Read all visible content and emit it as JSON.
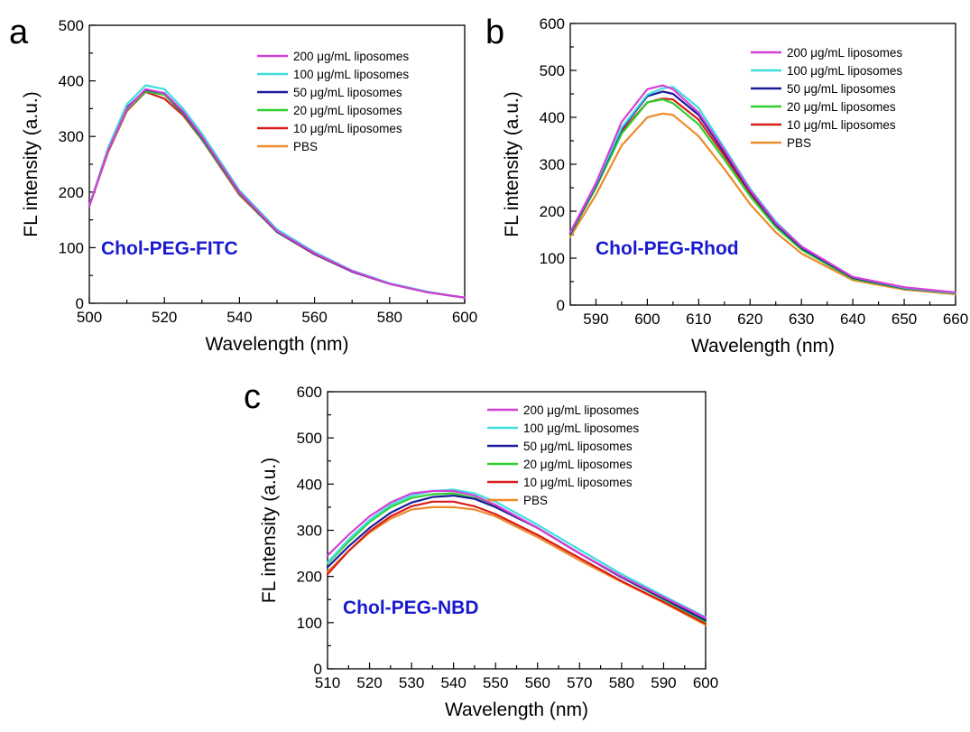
{
  "colors": {
    "200": "#d63fd6",
    "100": "#3fdede",
    "50": "#1c1c9c",
    "20": "#2fcf2f",
    "10": "#d81c1c",
    "PBS": "#ee8a2a",
    "dye_label": "#1a1ad0"
  },
  "chart_data": [
    {
      "panel": "a",
      "type": "line",
      "xlabel": "Wavelength (nm)",
      "ylabel": "FL intensity (a.u.)",
      "xlim": [
        500,
        600
      ],
      "ylim": [
        0,
        500
      ],
      "xticks": [
        "500",
        "520",
        "540",
        "560",
        "580",
        "600"
      ],
      "yticks": [
        "0",
        "100",
        "200",
        "300",
        "400",
        "500"
      ],
      "annotation": "Chol-PEG-FITC",
      "legend": [
        "200 μg/mL liposomes",
        "100 μg/mL liposomes",
        "50 μg/mL liposomes",
        "20 μg/mL liposomes",
        "10 μg/mL liposomes",
        "PBS"
      ],
      "legend_position": "top-right",
      "x": [
        500,
        505,
        510,
        515,
        520,
        525,
        530,
        540,
        550,
        560,
        570,
        580,
        590,
        600
      ],
      "series": [
        {
          "name": "200 μg/mL liposomes",
          "values": [
            175,
            275,
            350,
            385,
            378,
            345,
            300,
            200,
            130,
            90,
            58,
            35,
            20,
            10
          ]
        },
        {
          "name": "100 μg/mL liposomes",
          "values": [
            175,
            280,
            358,
            392,
            385,
            350,
            305,
            203,
            133,
            92,
            59,
            36,
            21,
            10
          ]
        },
        {
          "name": "50 μg/mL liposomes",
          "values": [
            175,
            276,
            352,
            384,
            378,
            343,
            298,
            199,
            129,
            89,
            57,
            35,
            20,
            10
          ]
        },
        {
          "name": "20 μg/mL liposomes",
          "values": [
            175,
            274,
            348,
            381,
            375,
            341,
            295,
            197,
            128,
            89,
            57,
            35,
            20,
            10
          ]
        },
        {
          "name": "10 μg/mL liposomes",
          "values": [
            175,
            272,
            346,
            380,
            368,
            338,
            294,
            195,
            128,
            88,
            57,
            35,
            20,
            10
          ]
        },
        {
          "name": "PBS",
          "values": [
            175,
            273,
            347,
            383,
            375,
            342,
            297,
            198,
            129,
            89,
            57,
            35,
            20,
            10
          ]
        }
      ]
    },
    {
      "panel": "b",
      "type": "line",
      "xlabel": "Wavelength (nm)",
      "ylabel": "FL intensity (a.u.)",
      "xlim": [
        585,
        660
      ],
      "ylim": [
        0,
        600
      ],
      "xticks": [
        "590",
        "600",
        "610",
        "620",
        "630",
        "640",
        "650",
        "660"
      ],
      "yticks": [
        "0",
        "100",
        "200",
        "300",
        "400",
        "500",
        "600"
      ],
      "annotation": "Chol-PEG-Rhod",
      "legend": [
        "200 μg/mL liposomes",
        "100 μg/mL liposomes",
        "50 μg/mL liposomes",
        "20 μg/mL liposomes",
        "10 μg/mL liposomes",
        "PBS"
      ],
      "legend_position": "top-right",
      "x": [
        585,
        590,
        595,
        600,
        603,
        605,
        610,
        615,
        620,
        625,
        630,
        640,
        650,
        660
      ],
      "series": [
        {
          "name": "200 μg/mL liposomes",
          "values": [
            155,
            260,
            390,
            460,
            468,
            460,
            410,
            330,
            245,
            175,
            125,
            60,
            38,
            27
          ]
        },
        {
          "name": "100 μg/mL liposomes",
          "values": [
            155,
            258,
            378,
            448,
            462,
            465,
            420,
            335,
            248,
            178,
            125,
            60,
            37,
            26
          ]
        },
        {
          "name": "50 μg/mL liposomes",
          "values": [
            152,
            255,
            375,
            445,
            455,
            450,
            405,
            325,
            242,
            172,
            122,
            58,
            36,
            26
          ]
        },
        {
          "name": "20 μg/mL liposomes",
          "values": [
            150,
            250,
            365,
            432,
            438,
            430,
            385,
            310,
            232,
            166,
            118,
            56,
            35,
            25
          ]
        },
        {
          "name": "10 μg/mL liposomes",
          "values": [
            152,
            253,
            370,
            432,
            440,
            438,
            395,
            318,
            238,
            170,
            120,
            57,
            35,
            25
          ]
        },
        {
          "name": "PBS",
          "values": [
            145,
            235,
            340,
            400,
            408,
            405,
            360,
            290,
            215,
            155,
            110,
            53,
            33,
            23
          ]
        }
      ]
    },
    {
      "panel": "c",
      "type": "line",
      "xlabel": "Wavelength (nm)",
      "ylabel": "FL intensity (a.u.)",
      "xlim": [
        510,
        600
      ],
      "ylim": [
        0,
        600
      ],
      "xticks": [
        "510",
        "520",
        "530",
        "540",
        "550",
        "560",
        "570",
        "580",
        "590",
        "600"
      ],
      "yticks": [
        "0",
        "100",
        "200",
        "300",
        "400",
        "500",
        "600"
      ],
      "annotation": "Chol-PEG-NBD",
      "legend": [
        "200 μg/mL liposomes",
        "100 μg/mL liposomes",
        "50 μg/mL liposomes",
        "20 μg/mL liposomes",
        "10 μg/mL liposomes",
        "PBS"
      ],
      "legend_position": "top-right",
      "x": [
        510,
        515,
        520,
        525,
        530,
        535,
        540,
        545,
        550,
        560,
        570,
        580,
        590,
        600
      ],
      "series": [
        {
          "name": "200 μg/mL liposomes",
          "values": [
            245,
            290,
            330,
            360,
            380,
            385,
            385,
            375,
            355,
            305,
            250,
            200,
            155,
            110
          ]
        },
        {
          "name": "100 μg/mL liposomes",
          "values": [
            230,
            280,
            322,
            355,
            375,
            385,
            388,
            380,
            362,
            312,
            258,
            205,
            158,
            112
          ]
        },
        {
          "name": "50 μg/mL liposomes",
          "values": [
            220,
            265,
            305,
            338,
            360,
            372,
            375,
            368,
            350,
            305,
            250,
            198,
            152,
            105
          ]
        },
        {
          "name": "20 μg/mL liposomes",
          "values": [
            228,
            275,
            318,
            350,
            370,
            378,
            380,
            370,
            352,
            305,
            250,
            198,
            150,
            102
          ]
        },
        {
          "name": "10 μg/mL liposomes",
          "values": [
            205,
            255,
            298,
            330,
            352,
            362,
            362,
            352,
            335,
            290,
            240,
            190,
            145,
            98
          ]
        },
        {
          "name": "PBS",
          "values": [
            210,
            255,
            295,
            325,
            345,
            350,
            350,
            345,
            330,
            285,
            235,
            188,
            143,
            95
          ]
        }
      ]
    }
  ]
}
